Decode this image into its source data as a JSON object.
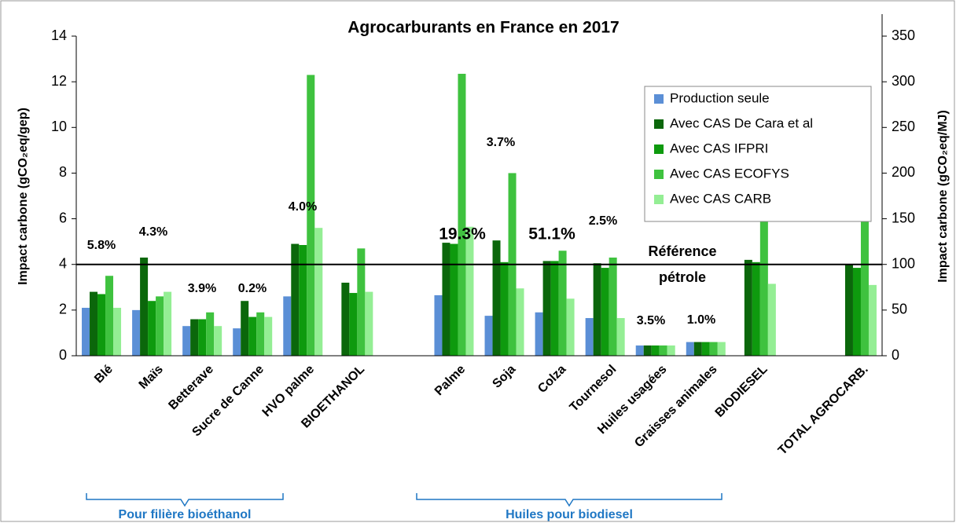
{
  "chart_data": {
    "type": "bar",
    "title": "Agrocarburants en France en 2017",
    "y_label": "Impact carbone (gCO₂eq/gep)",
    "y2_label": "Impact carbone (gCO₂eq/MJ)",
    "categories": [
      "Blé",
      "Maïs",
      "Betterave",
      "Sucre de Canne",
      "HVO palme",
      "BIOETHANOL",
      null,
      "Palme",
      "Soja",
      "Colza",
      "Tournesol",
      "Huiles usagées",
      "Graisses animales",
      "BIODIESEL",
      null,
      "TOTAL AGROCARB."
    ],
    "series": [
      {
        "name": "Production seule",
        "color": "#5b8fd6",
        "values": [
          2.1,
          2.0,
          1.3,
          1.2,
          2.6,
          null,
          null,
          2.65,
          1.75,
          1.9,
          1.65,
          0.45,
          0.6,
          null,
          null,
          null
        ]
      },
      {
        "name": "Avec CAS De Cara et al",
        "color": "#0b670b",
        "values": [
          2.8,
          4.3,
          1.6,
          2.4,
          4.9,
          3.2,
          null,
          4.95,
          5.05,
          4.15,
          4.05,
          0.45,
          0.6,
          4.2,
          null,
          4.0
        ]
      },
      {
        "name": "Avec CAS IFPRI",
        "color": "#0e9a0e",
        "values": [
          2.7,
          2.4,
          1.6,
          1.7,
          4.85,
          2.75,
          null,
          4.9,
          4.1,
          4.15,
          3.85,
          0.45,
          0.6,
          4.1,
          null,
          3.85
        ]
      },
      {
        "name": "Avec CAS ECOFYS",
        "color": "#3fc23f",
        "values": [
          3.5,
          2.6,
          1.9,
          1.9,
          12.3,
          4.7,
          null,
          12.35,
          8.0,
          4.6,
          4.3,
          0.45,
          0.6,
          6.35,
          null,
          6.05
        ]
      },
      {
        "name": "Avec CAS CARB",
        "color": "#94ee94",
        "values": [
          2.1,
          2.8,
          1.3,
          1.7,
          5.6,
          2.8,
          null,
          5.65,
          2.95,
          2.5,
          1.65,
          0.45,
          0.6,
          3.15,
          null,
          3.1
        ]
      }
    ],
    "annotations": [
      "5.8%",
      "4.3%",
      "3.9%",
      "0.2%",
      "4.0%",
      "19.3%",
      "3.7%",
      "51.1%",
      "2.5%",
      "3.5%",
      "1.0%"
    ],
    "reference": {
      "label_lines": [
        "Référence",
        "pétrole"
      ],
      "value": 4.0
    },
    "groups": [
      "Pour filière bioéthanol",
      "Huiles pour biodiesel"
    ],
    "ylim": [
      0,
      14
    ],
    "yticks": [
      0,
      2,
      4,
      6,
      8,
      10,
      12,
      14
    ],
    "y2lim": [
      0,
      350
    ],
    "y2ticks": [
      0,
      50,
      100,
      150,
      200,
      250,
      300,
      350
    ],
    "legend": "upper right",
    "grid": false
  }
}
